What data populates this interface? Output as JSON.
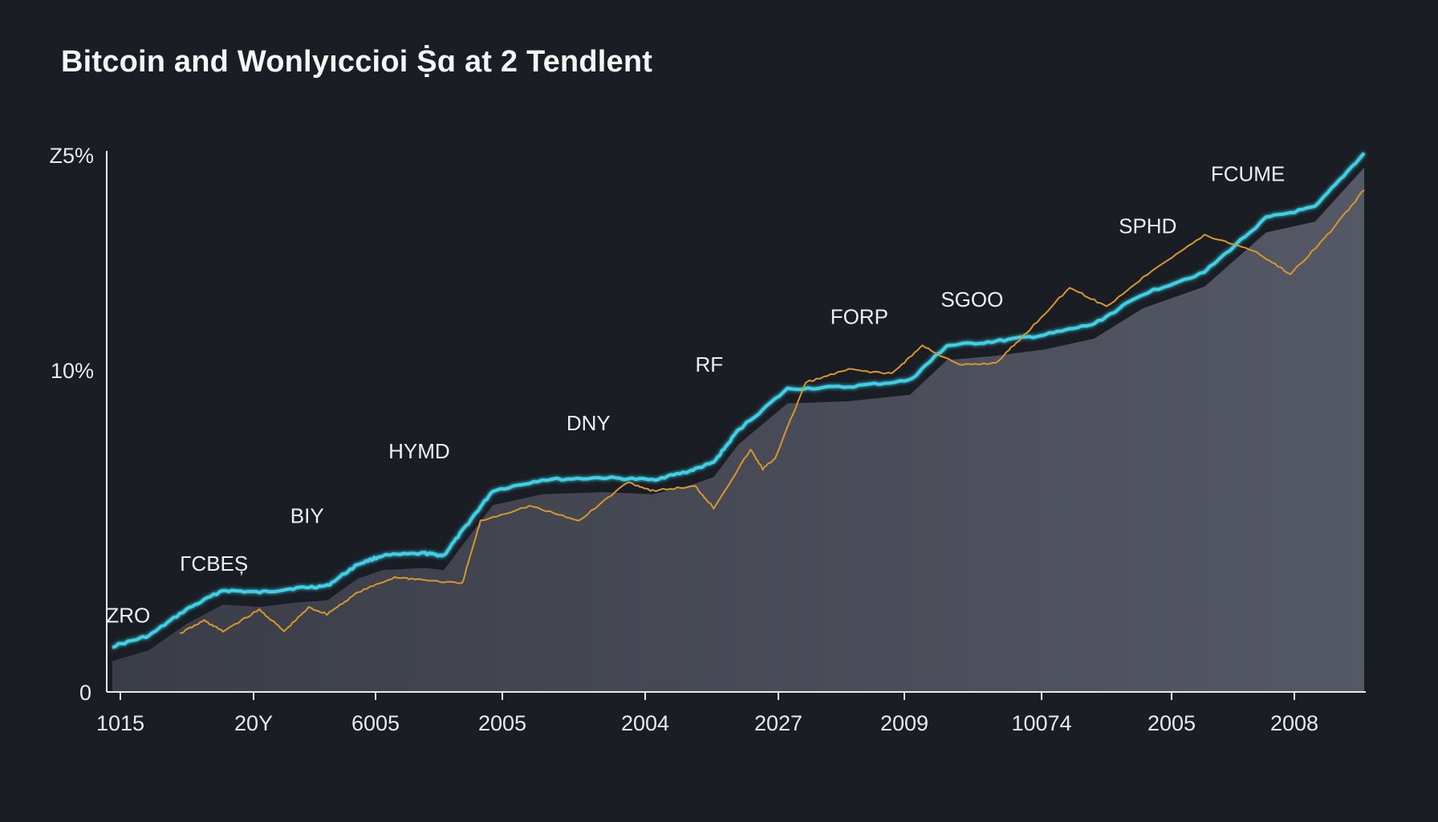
{
  "colors": {
    "background": "#1a1d24",
    "cyan_line": "#3fd0e6",
    "orange_line": "#d8962e",
    "area_fill": "#4a4d58",
    "axis": "#e8eaee"
  },
  "chart_data": {
    "type": "line",
    "title": "Bitcoin and Wonlyıccioi Ṩɑ at 2 Tendlent",
    "xlabel": "",
    "ylabel": "",
    "x_tick_labels": [
      "1015",
      "20Y",
      "6005",
      "2005",
      "2004",
      "2027",
      "2009",
      "10074",
      "2005",
      "2008"
    ],
    "y_tick_labels": [
      "0",
      "10%",
      "Z5%"
    ],
    "ylim": [
      0,
      25
    ],
    "grid": false,
    "legend": "none",
    "series": [
      {
        "color": "#3fd0e6",
        "points": [
          [
            0.0,
            2.1
          ],
          [
            0.3,
            2.6
          ],
          [
            0.6,
            3.8
          ],
          [
            0.9,
            4.7
          ],
          [
            1.2,
            4.6
          ],
          [
            1.5,
            4.8
          ],
          [
            1.75,
            4.9
          ],
          [
            2.0,
            5.9
          ],
          [
            2.2,
            6.3
          ],
          [
            2.55,
            6.4
          ],
          [
            2.7,
            6.3
          ],
          [
            2.9,
            7.8
          ],
          [
            3.1,
            9.3
          ],
          [
            3.5,
            9.8
          ],
          [
            4.0,
            9.9
          ],
          [
            4.4,
            9.8
          ],
          [
            4.7,
            10.2
          ],
          [
            4.9,
            10.6
          ],
          [
            5.1,
            12.1
          ],
          [
            5.5,
            14.0
          ],
          [
            6.0,
            14.1
          ],
          [
            6.5,
            14.4
          ],
          [
            6.8,
            16.0
          ],
          [
            7.2,
            16.2
          ],
          [
            7.6,
            16.5
          ],
          [
            8.0,
            17.0
          ],
          [
            8.4,
            18.4
          ],
          [
            8.9,
            19.4
          ],
          [
            9.4,
            21.9
          ],
          [
            9.8,
            22.4
          ],
          [
            10.2,
            24.9
          ]
        ]
      },
      {
        "color": "#d8962e",
        "points": [
          [
            0.55,
            2.7
          ],
          [
            0.75,
            3.3
          ],
          [
            0.9,
            2.8
          ],
          [
            1.2,
            3.8
          ],
          [
            1.4,
            2.8
          ],
          [
            1.6,
            3.9
          ],
          [
            1.75,
            3.6
          ],
          [
            2.0,
            4.6
          ],
          [
            2.3,
            5.3
          ],
          [
            2.5,
            5.2
          ],
          [
            2.85,
            5.0
          ],
          [
            3.0,
            7.9
          ],
          [
            3.4,
            8.6
          ],
          [
            3.8,
            7.9
          ],
          [
            4.2,
            9.7
          ],
          [
            4.4,
            9.3
          ],
          [
            4.75,
            9.5
          ],
          [
            4.9,
            8.5
          ],
          [
            5.2,
            11.2
          ],
          [
            5.3,
            10.3
          ],
          [
            5.4,
            10.8
          ],
          [
            5.65,
            14.3
          ],
          [
            6.0,
            14.9
          ],
          [
            6.35,
            14.7
          ],
          [
            6.6,
            16.0
          ],
          [
            6.9,
            15.1
          ],
          [
            7.2,
            15.2
          ],
          [
            7.45,
            16.6
          ],
          [
            7.8,
            18.7
          ],
          [
            8.1,
            17.8
          ],
          [
            8.5,
            19.6
          ],
          [
            8.9,
            21.1
          ],
          [
            9.3,
            20.4
          ],
          [
            9.6,
            19.3
          ],
          [
            9.9,
            21.1
          ],
          [
            10.2,
            23.2
          ]
        ]
      }
    ],
    "annotations": [
      {
        "text": "ZRO",
        "x": -0.05,
        "y": 3.2
      },
      {
        "text": "ΓCBEȘ",
        "x": 0.55,
        "y": 5.6
      },
      {
        "text": "BIY",
        "x": 1.45,
        "y": 7.8
      },
      {
        "text": "ΗYMD",
        "x": 2.25,
        "y": 10.8
      },
      {
        "text": "DΝY",
        "x": 3.7,
        "y": 12.1
      },
      {
        "text": "RF",
        "x": 4.75,
        "y": 14.8
      },
      {
        "text": "FORP",
        "x": 5.85,
        "y": 17.0
      },
      {
        "text": "SGOO",
        "x": 6.75,
        "y": 17.8
      },
      {
        "text": "SPHD",
        "x": 8.2,
        "y": 21.2
      },
      {
        "text": "FCUME",
        "x": 8.95,
        "y": 23.6
      }
    ]
  }
}
